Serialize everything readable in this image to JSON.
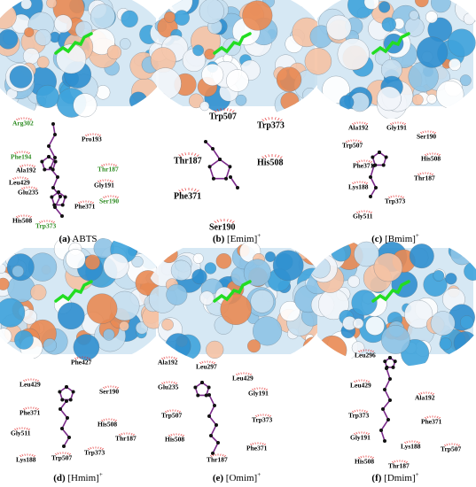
{
  "panels": [
    {
      "label": "(a)",
      "name": "ABTS",
      "charge": null,
      "residues": [
        {
          "name": "Arg302",
          "color": "#2e8b22"
        },
        {
          "name": "Phe194",
          "color": "#2e8b22"
        },
        {
          "name": "Pro193",
          "color": "#000000"
        },
        {
          "name": "Ala192",
          "color": "#000000"
        },
        {
          "name": "Thr187",
          "color": "#2e8b22"
        },
        {
          "name": "Leu429",
          "color": "#000000"
        },
        {
          "name": "Gly191",
          "color": "#000000"
        },
        {
          "name": "Glu235",
          "color": "#000000"
        },
        {
          "name": "Phe371",
          "color": "#000000"
        },
        {
          "name": "Ser190",
          "color": "#2e8b22"
        },
        {
          "name": "His508",
          "color": "#000000"
        },
        {
          "name": "Trp373",
          "color": "#2e8b22"
        }
      ]
    },
    {
      "label": "(b)",
      "name": "[Emim]",
      "charge": "+",
      "residues": [
        "Trp507",
        "Trp373",
        "Thr187",
        "His508",
        "Phe371",
        "Ser190"
      ]
    },
    {
      "label": "(c)",
      "name": "[Bmim]",
      "charge": "+",
      "residues": [
        "Ala192",
        "Gly191",
        "Ser190",
        "Trp507",
        "Phe371",
        "His508",
        "Thr187",
        "Lys188",
        "Trp373",
        "Gly511"
      ]
    },
    {
      "label": "(d)",
      "name": "[Hmim]",
      "charge": "+",
      "residues": [
        "Phe427",
        "Leu429",
        "Ser190",
        "Phe371",
        "His508",
        "Gly511",
        "Thr187",
        "Lys188",
        "Trp507",
        "Trp373"
      ]
    },
    {
      "label": "(e)",
      "name": "[Omim]",
      "charge": "+",
      "residues": [
        "Ala192",
        "Leu297",
        "Leu429",
        "Glu235",
        "Gly191",
        "Trp507",
        "Trp373",
        "His508",
        "Phe371",
        "Thr187"
      ]
    },
    {
      "label": "(f)",
      "name": "[Dmim]",
      "charge": "+",
      "residues": [
        "Leu296",
        "Leu429",
        "Ala192",
        "Trp373",
        "Phe371",
        "Gly191",
        "Lys188",
        "Trp507",
        "His508",
        "Thr187"
      ]
    }
  ]
}
